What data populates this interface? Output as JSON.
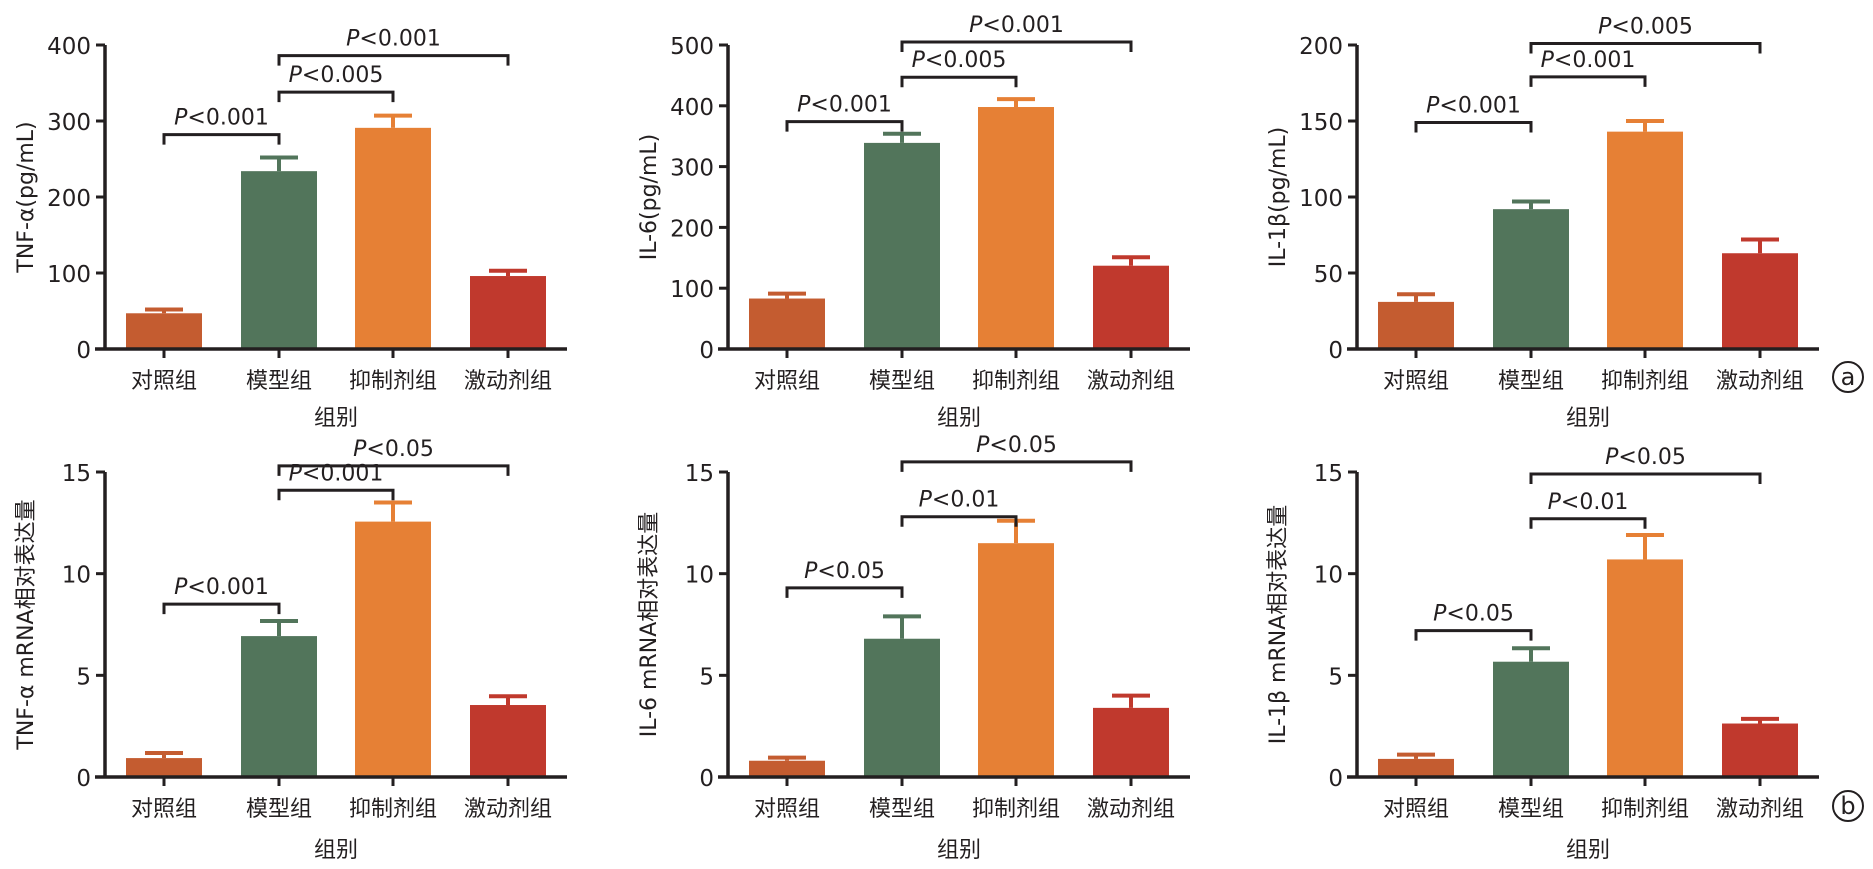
{
  "chart_data": [
    {
      "type": "bar",
      "panel": "a",
      "ylabel": "TNF-α(pg/mL)",
      "xlabel": "组别",
      "ylim": [
        0,
        400
      ],
      "yticks": [
        0,
        100,
        200,
        300,
        400
      ],
      "categories": [
        "对照组",
        "模型组",
        "抑制剂组",
        "激动剂组"
      ],
      "values": [
        47,
        234,
        291,
        96
      ],
      "error_upper": [
        52,
        252,
        307,
        103
      ],
      "significance": [
        {
          "from": "对照组",
          "to": "模型组",
          "label_prefix": "P",
          "label_rest": "<0.001",
          "level": 282
        },
        {
          "from": "模型组",
          "to": "抑制剂组",
          "label_prefix": "P",
          "label_rest": "<0.005",
          "level": 338
        },
        {
          "from": "模型组",
          "to": "激动剂组",
          "label_prefix": "P",
          "label_rest": "<0.001",
          "level": 386
        }
      ]
    },
    {
      "type": "bar",
      "panel": "a",
      "ylabel": "IL-6(pg/mL)",
      "xlabel": "组别",
      "ylim": [
        0,
        500
      ],
      "yticks": [
        0,
        100,
        200,
        300,
        400,
        500
      ],
      "categories": [
        "对照组",
        "模型组",
        "抑制剂组",
        "激动剂组"
      ],
      "values": [
        83,
        339,
        398,
        137
      ],
      "error_upper": [
        91,
        354,
        411,
        151
      ],
      "significance": [
        {
          "from": "对照组",
          "to": "模型组",
          "label_prefix": "P",
          "label_rest": "<0.001",
          "level": 374
        },
        {
          "from": "模型组",
          "to": "抑制剂组",
          "label_prefix": "P",
          "label_rest": "<0.005",
          "level": 447
        },
        {
          "from": "模型组",
          "to": "激动剂组",
          "label_prefix": "P",
          "label_rest": "<0.001",
          "level": 505
        }
      ]
    },
    {
      "type": "bar",
      "panel": "a",
      "ylabel": "IL-1β(pg/mL)",
      "xlabel": "组别",
      "ylim": [
        0,
        200
      ],
      "yticks": [
        0,
        50,
        100,
        150,
        200
      ],
      "categories": [
        "对照组",
        "模型组",
        "抑制剂组",
        "激动剂组"
      ],
      "values": [
        31,
        92,
        143,
        63
      ],
      "error_upper": [
        36,
        97,
        150,
        72
      ],
      "significance": [
        {
          "from": "对照组",
          "to": "模型组",
          "label_prefix": "P",
          "label_rest": "<0.001",
          "level": 149
        },
        {
          "from": "模型组",
          "to": "抑制剂组",
          "label_prefix": "P",
          "label_rest": "<0.001",
          "level": 179
        },
        {
          "from": "模型组",
          "to": "激动剂组",
          "label_prefix": "P",
          "label_rest": "<0.005",
          "level": 201
        }
      ]
    },
    {
      "type": "bar",
      "panel": "b",
      "ylabel": "TNF-α mRNA相对表达量",
      "xlabel": "组别",
      "ylim": [
        0,
        15
      ],
      "yticks": [
        0,
        5,
        10,
        15
      ],
      "categories": [
        "对照组",
        "模型组",
        "抑制剂组",
        "激动剂组"
      ],
      "values": [
        0.93,
        6.93,
        12.56,
        3.54
      ],
      "error_upper": [
        1.18,
        7.67,
        13.5,
        3.97
      ],
      "significance": [
        {
          "from": "对照组",
          "to": "模型组",
          "label_prefix": "P",
          "label_rest": "<0.001",
          "level": 8.5
        },
        {
          "from": "模型组",
          "to": "抑制剂组",
          "label_prefix": "P",
          "label_rest": "<0.001",
          "level": 14.1
        },
        {
          "from": "模型组",
          "to": "激动剂组",
          "label_prefix": "P",
          "label_rest": "<0.05",
          "level": 15.3
        }
      ]
    },
    {
      "type": "bar",
      "panel": "b",
      "ylabel": "IL-6 mRNA相对表达量",
      "xlabel": "组别",
      "ylim": [
        0,
        15
      ],
      "yticks": [
        0,
        5,
        10,
        15
      ],
      "categories": [
        "对照组",
        "模型组",
        "抑制剂组",
        "激动剂组"
      ],
      "values": [
        0.8,
        6.8,
        11.5,
        3.4
      ],
      "error_upper": [
        0.95,
        7.9,
        12.6,
        4.0
      ],
      "significance": [
        {
          "from": "对照组",
          "to": "模型组",
          "label_prefix": "P",
          "label_rest": "<0.05",
          "level": 9.3
        },
        {
          "from": "模型组",
          "to": "抑制剂组",
          "label_prefix": "P",
          "label_rest": "<0.01",
          "level": 12.8
        },
        {
          "from": "模型组",
          "to": "激动剂组",
          "label_prefix": "P",
          "label_rest": "<0.05",
          "level": 15.5
        }
      ]
    },
    {
      "type": "bar",
      "panel": "b",
      "ylabel": "IL-1β mRNA相对表达量",
      "xlabel": "组别",
      "ylim": [
        0,
        15
      ],
      "yticks": [
        0,
        5,
        10,
        15
      ],
      "categories": [
        "对照组",
        "模型组",
        "抑制剂组",
        "激动剂组"
      ],
      "values": [
        0.89,
        5.67,
        10.7,
        2.63
      ],
      "error_upper": [
        1.1,
        6.33,
        11.9,
        2.86
      ],
      "significance": [
        {
          "from": "对照组",
          "to": "模型组",
          "label_prefix": "P",
          "label_rest": "<0.05",
          "level": 7.2
        },
        {
          "from": "模型组",
          "to": "抑制剂组",
          "label_prefix": "P",
          "label_rest": "<0.01",
          "level": 12.7
        },
        {
          "from": "模型组",
          "to": "激动剂组",
          "label_prefix": "P",
          "label_rest": "<0.05",
          "level": 14.9
        }
      ]
    }
  ],
  "panel_markers": [
    "a",
    "b"
  ],
  "colors": {
    "对照组": "#c45c30",
    "模型组": "#52755b",
    "抑制剂组": "#e68035",
    "激动剂组": "#c0392d",
    "axis": "#231f20"
  }
}
